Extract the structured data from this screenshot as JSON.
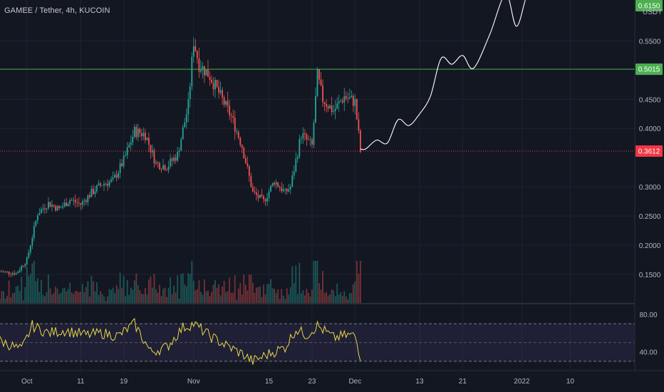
{
  "header": {
    "title": "GAMEE / Tether, 4h, KUCOIN",
    "unit": "USDT"
  },
  "colors": {
    "up": "#26a69a",
    "down": "#ef5350",
    "level": "#4caf50",
    "price": "#f23645",
    "rsi": "#e8d84a",
    "forecast": "#ffffff"
  },
  "chart_data": {
    "type": "candlestick",
    "symbol": "GAMEE / Tether",
    "interval": "4h",
    "exchange": "KUCOIN",
    "price_axis": {
      "ylim": [
        0.1,
        0.62
      ],
      "ticks": [
        {
          "value": 0.55,
          "label": "0.5500"
        },
        {
          "value": 0.45,
          "label": "0.4500"
        },
        {
          "value": 0.4,
          "label": "0.4000"
        },
        {
          "value": 0.3,
          "label": "0.3000"
        },
        {
          "value": 0.25,
          "label": "0.2500"
        },
        {
          "value": 0.2,
          "label": "0.2000"
        },
        {
          "value": 0.15,
          "label": "0.1500"
        }
      ]
    },
    "time_axis": {
      "ticks": [
        {
          "date": "2021-10-01",
          "label": "Oct"
        },
        {
          "date": "2021-10-11",
          "label": "11"
        },
        {
          "date": "2021-10-19",
          "label": "19"
        },
        {
          "date": "2021-11-01",
          "label": "Nov"
        },
        {
          "date": "2021-11-15",
          "label": "15"
        },
        {
          "date": "2021-11-23",
          "label": "23"
        },
        {
          "date": "2021-12-01",
          "label": "Dec"
        },
        {
          "date": "2021-12-13",
          "label": "13"
        },
        {
          "date": "2021-12-21",
          "label": "21"
        },
        {
          "date": "2022-01-01",
          "label": "2022"
        },
        {
          "date": "2022-01-10",
          "label": "10"
        }
      ]
    },
    "horizontal_level": {
      "value": 0.5015,
      "label": "0.5015"
    },
    "last_price": {
      "value": 0.3612,
      "label": "0.3612"
    },
    "top_label": {
      "value": 0.615,
      "label": "0.6150"
    },
    "price_path": [
      {
        "date": "2021-09-26",
        "price": 0.155
      },
      {
        "date": "2021-09-29",
        "price": 0.152
      },
      {
        "date": "2021-10-01",
        "price": 0.175
      },
      {
        "date": "2021-10-03",
        "price": 0.255
      },
      {
        "date": "2021-10-05",
        "price": 0.272
      },
      {
        "date": "2021-10-07",
        "price": 0.262
      },
      {
        "date": "2021-10-09",
        "price": 0.278
      },
      {
        "date": "2021-10-11",
        "price": 0.27
      },
      {
        "date": "2021-10-13",
        "price": 0.29
      },
      {
        "date": "2021-10-15",
        "price": 0.305
      },
      {
        "date": "2021-10-17",
        "price": 0.31
      },
      {
        "date": "2021-10-19",
        "price": 0.345
      },
      {
        "date": "2021-10-21",
        "price": 0.395
      },
      {
        "date": "2021-10-23",
        "price": 0.39
      },
      {
        "date": "2021-10-25",
        "price": 0.34
      },
      {
        "date": "2021-10-27",
        "price": 0.335
      },
      {
        "date": "2021-10-29",
        "price": 0.355
      },
      {
        "date": "2021-10-31",
        "price": 0.44
      },
      {
        "date": "2021-11-01",
        "price": 0.55
      },
      {
        "date": "2021-11-02",
        "price": 0.51
      },
      {
        "date": "2021-11-04",
        "price": 0.49
      },
      {
        "date": "2021-11-06",
        "price": 0.455
      },
      {
        "date": "2021-11-08",
        "price": 0.42
      },
      {
        "date": "2021-11-10",
        "price": 0.37
      },
      {
        "date": "2021-11-12",
        "price": 0.29
      },
      {
        "date": "2021-11-14",
        "price": 0.275
      },
      {
        "date": "2021-11-16",
        "price": 0.31
      },
      {
        "date": "2021-11-18",
        "price": 0.29
      },
      {
        "date": "2021-11-19",
        "price": 0.3
      },
      {
        "date": "2021-11-21",
        "price": 0.39
      },
      {
        "date": "2021-11-23",
        "price": 0.37
      },
      {
        "date": "2021-11-24",
        "price": 0.49
      },
      {
        "date": "2021-11-25",
        "price": 0.45
      },
      {
        "date": "2021-11-27",
        "price": 0.43
      },
      {
        "date": "2021-11-29",
        "price": 0.455
      },
      {
        "date": "2021-12-01",
        "price": 0.445
      },
      {
        "date": "2021-12-02",
        "price": 0.3612
      }
    ],
    "forecast_path": [
      {
        "date": "2021-12-03",
        "price": 0.365
      },
      {
        "date": "2021-12-05",
        "price": 0.38
      },
      {
        "date": "2021-12-07",
        "price": 0.375
      },
      {
        "date": "2021-12-09",
        "price": 0.415
      },
      {
        "date": "2021-12-11",
        "price": 0.405
      },
      {
        "date": "2021-12-13",
        "price": 0.425
      },
      {
        "date": "2021-12-15",
        "price": 0.455
      },
      {
        "date": "2021-12-17",
        "price": 0.52
      },
      {
        "date": "2021-12-19",
        "price": 0.51
      },
      {
        "date": "2021-12-21",
        "price": 0.525
      },
      {
        "date": "2021-12-23",
        "price": 0.503
      },
      {
        "date": "2021-12-26",
        "price": 0.56
      },
      {
        "date": "2021-12-29",
        "price": 0.63
      },
      {
        "date": "2021-12-31",
        "price": 0.575
      },
      {
        "date": "2022-01-02",
        "price": 0.63
      },
      {
        "date": "2022-01-04",
        "price": 0.66
      }
    ],
    "rsi": {
      "ylim": [
        20,
        90
      ],
      "ticks": [
        {
          "value": 80,
          "label": "80.00"
        },
        {
          "value": 40,
          "label": "40.00"
        }
      ],
      "band": [
        30,
        70
      ],
      "midline": 50,
      "path": [
        {
          "date": "2021-09-26",
          "value": 52
        },
        {
          "date": "2021-09-30",
          "value": 42
        },
        {
          "date": "2021-10-02",
          "value": 68
        },
        {
          "date": "2021-10-05",
          "value": 60
        },
        {
          "date": "2021-10-08",
          "value": 63
        },
        {
          "date": "2021-10-12",
          "value": 58
        },
        {
          "date": "2021-10-15",
          "value": 60
        },
        {
          "date": "2021-10-18",
          "value": 57
        },
        {
          "date": "2021-10-21",
          "value": 70
        },
        {
          "date": "2021-10-24",
          "value": 40
        },
        {
          "date": "2021-10-27",
          "value": 45
        },
        {
          "date": "2021-10-30",
          "value": 66
        },
        {
          "date": "2021-11-01",
          "value": 70
        },
        {
          "date": "2021-11-04",
          "value": 57
        },
        {
          "date": "2021-11-07",
          "value": 47
        },
        {
          "date": "2021-11-10",
          "value": 38
        },
        {
          "date": "2021-11-12",
          "value": 30
        },
        {
          "date": "2021-11-15",
          "value": 38
        },
        {
          "date": "2021-11-18",
          "value": 45
        },
        {
          "date": "2021-11-20",
          "value": 64
        },
        {
          "date": "2021-11-22",
          "value": 58
        },
        {
          "date": "2021-11-24",
          "value": 68
        },
        {
          "date": "2021-11-27",
          "value": 55
        },
        {
          "date": "2021-11-30",
          "value": 58
        },
        {
          "date": "2021-12-01",
          "value": 57
        },
        {
          "date": "2021-12-02",
          "value": 35
        }
      ]
    }
  }
}
